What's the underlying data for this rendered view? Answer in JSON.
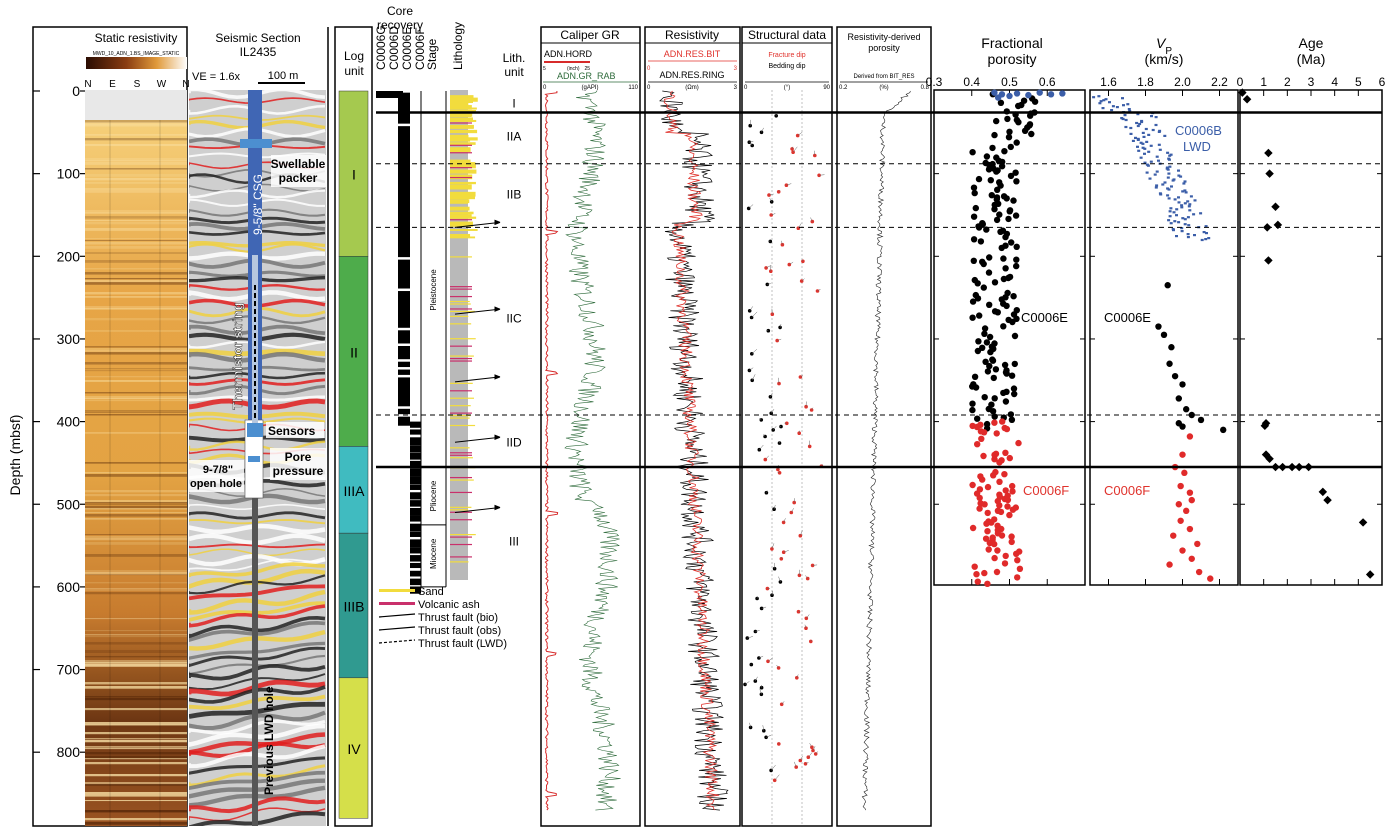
{
  "figure": {
    "depth_axis": {
      "label": "Depth (mbsf)",
      "ticks": [
        0,
        100,
        200,
        300,
        400,
        500,
        600,
        700,
        800
      ],
      "range": [
        0,
        880
      ]
    },
    "resistivity_image": {
      "title": "Static resistivity",
      "scale_caption": "MWD_10_ADN_1.BS_IMAGE_STATIC",
      "orientation_labels": [
        "N",
        "E",
        "S",
        "W",
        "N"
      ]
    },
    "seismic": {
      "title_line1": "Seismic Section",
      "title_line2": "IL2435",
      "ve_label": "VE = 1.6x",
      "scale_label": "100 m",
      "casing_label": "9-5/8\" CSG",
      "thermistor_label": "Thermistor string",
      "lwd_label": "Previous LWD hole",
      "annotations": [
        "Swellable packer",
        "Sensors",
        "Pore pressure",
        "9-7/8\" open hole"
      ]
    },
    "log_units": {
      "header": "Log unit",
      "units": [
        {
          "name": "I",
          "top": 0,
          "bottom": 200,
          "color": "#a5c94f"
        },
        {
          "name": "II",
          "top": 200,
          "bottom": 430,
          "color": "#4eac4b"
        },
        {
          "name": "IIIA",
          "top": 430,
          "bottom": 535,
          "color": "#40bbc0"
        },
        {
          "name": "IIIB",
          "top": 535,
          "bottom": 710,
          "color": "#309a90"
        },
        {
          "name": "IV",
          "top": 710,
          "bottom": 880,
          "color": "#d5df4a"
        }
      ]
    },
    "core_recovery": {
      "header": "Core recovery",
      "holes": [
        "C0006G",
        "C0006D",
        "C0006E",
        "C0006F"
      ]
    },
    "stage": {
      "header": "Stage",
      "labels": [
        "Pleistocene",
        "Pliocene",
        "Miocene"
      ]
    },
    "lithology": {
      "header": "Lithology",
      "legend": [
        "Sand",
        "Volcanic ash",
        "Thrust fault (bio)",
        "Thrust fault (obs)",
        "Thrust fault (LWD)"
      ]
    },
    "lith_units": {
      "header_line1": "Lith.",
      "header_line2": "unit",
      "labels": [
        {
          "name": "I",
          "depth": 15
        },
        {
          "name": "IIA",
          "depth": 55
        },
        {
          "name": "IIB",
          "depth": 125
        },
        {
          "name": "IIC",
          "depth": 275
        },
        {
          "name": "IID",
          "depth": 425
        },
        {
          "name": "III",
          "depth": 545
        }
      ],
      "solid_boundaries": [
        26,
        455
      ],
      "dashed_boundaries": [
        88,
        165,
        392
      ]
    },
    "caliper_gr": {
      "title": "Caliper GR",
      "curve1": "ADN.HORD",
      "curve1_unit": "(inch)",
      "curve2": "ADN.GR_RAB",
      "curve2_unit": "(gAPI)",
      "scale": [
        "0",
        "110"
      ],
      "hord_scale": [
        "5",
        "25"
      ]
    },
    "resistivity_log": {
      "title": "Resistivity",
      "curve1": "ADN.RES.BIT",
      "curve2": "ADN.RES.RING",
      "unit": "(Ωm)",
      "scale": [
        "0",
        "3"
      ]
    },
    "structural": {
      "title": "Structural data",
      "fracture_label": "Fracture dip",
      "bedding_label": "Bedding dip",
      "unit": "(°)",
      "scale": [
        "0",
        "90"
      ]
    },
    "res_porosity": {
      "title_line1": "Resistivity-derived",
      "title_line2": "porosity",
      "caption": "Derived from BIT_RES",
      "unit": "(%)",
      "scale": [
        "0.2",
        "0.8"
      ]
    }
  },
  "chart_data": [
    {
      "type": "scatter",
      "title": "Fractional porosity",
      "xlim": [
        0.3,
        0.7
      ],
      "x_ticks": [
        "0.3",
        "0.4",
        "0.5",
        "0.6"
      ],
      "ylim": [
        0,
        600
      ],
      "series": [
        {
          "name": "C0006E",
          "color": "#000000",
          "depth_range": [
            0,
            410
          ],
          "porosity_range": [
            0.36,
            0.56
          ]
        },
        {
          "name": "C0006F",
          "color": "#e02a2a",
          "depth_range": [
            400,
            600
          ],
          "porosity_range": [
            0.36,
            0.57
          ]
        },
        {
          "name": "C0006B LWD",
          "color": "#3b5ea8",
          "points": [
            [
              0.46,
              2
            ],
            [
              0.48,
              4
            ],
            [
              0.5,
              6
            ],
            [
              0.52,
              3
            ],
            [
              0.55,
              5
            ],
            [
              0.58,
              2
            ],
            [
              0.61,
              4
            ],
            [
              0.64,
              3
            ],
            [
              0.47,
              8
            ]
          ]
        }
      ]
    },
    {
      "type": "scatter",
      "title": "VP",
      "xlabel": "(km/s)",
      "xlim": [
        1.5,
        2.3
      ],
      "x_ticks": [
        "1.6",
        "1.8",
        "2.0",
        "2.2"
      ],
      "ylim": [
        0,
        600
      ],
      "series": [
        {
          "name": "C0006B LWD",
          "color": "#3b5ea8",
          "depth_range": [
            0,
            180
          ],
          "velocity_range": [
            1.52,
            2.0
          ]
        },
        {
          "name": "C0006E",
          "color": "#000000",
          "points": [
            [
              1.92,
              235
            ],
            [
              1.87,
              285
            ],
            [
              1.9,
              295
            ],
            [
              1.94,
              310
            ],
            [
              1.93,
              330
            ],
            [
              1.96,
              345
            ],
            [
              2.0,
              355
            ],
            [
              1.98,
              372
            ],
            [
              2.02,
              385
            ],
            [
              2.05,
              392
            ],
            [
              1.98,
              402
            ],
            [
              2.1,
              398
            ],
            [
              2.22,
              410
            ],
            [
              2.0,
              406
            ]
          ]
        },
        {
          "name": "C0006F",
          "color": "#e02a2a",
          "points": [
            [
              2.04,
              418
            ],
            [
              2.0,
              440
            ],
            [
              1.96,
              455
            ],
            [
              2.01,
              462
            ],
            [
              1.99,
              478
            ],
            [
              2.04,
              486
            ],
            [
              2.05,
              495
            ],
            [
              1.98,
              500
            ],
            [
              2.02,
              508
            ],
            [
              1.99,
              520
            ],
            [
              2.04,
              530
            ],
            [
              1.95,
              538
            ],
            [
              2.08,
              548
            ],
            [
              2.0,
              556
            ],
            [
              2.05,
              566
            ],
            [
              1.93,
              573
            ],
            [
              2.09,
              582
            ],
            [
              2.15,
              590
            ]
          ]
        }
      ]
    },
    {
      "type": "scatter",
      "title": "Age",
      "xlabel": "(Ma)",
      "xlim": [
        0,
        6
      ],
      "x_ticks": [
        "0",
        "1",
        "2",
        "3",
        "4",
        "5",
        "6"
      ],
      "ylim": [
        0,
        600
      ],
      "series": [
        {
          "name": "Age",
          "color": "#000000",
          "points": [
            [
              0.1,
              2
            ],
            [
              0.3,
              10
            ],
            [
              1.2,
              75
            ],
            [
              1.25,
              100
            ],
            [
              1.5,
              140
            ],
            [
              1.6,
              162
            ],
            [
              1.15,
              165
            ],
            [
              1.2,
              205
            ],
            [
              1.1,
              402
            ],
            [
              1.05,
              405
            ],
            [
              1.1,
              440
            ],
            [
              1.25,
              445
            ],
            [
              1.5,
              455
            ],
            [
              1.8,
              455
            ],
            [
              2.2,
              455
            ],
            [
              2.5,
              455
            ],
            [
              2.9,
              455
            ],
            [
              3.5,
              485
            ],
            [
              3.7,
              495
            ],
            [
              5.2,
              522
            ],
            [
              5.5,
              585
            ]
          ]
        }
      ]
    }
  ]
}
